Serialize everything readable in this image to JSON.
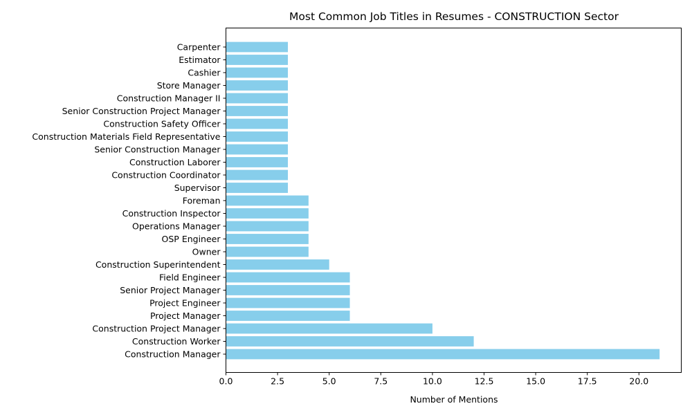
{
  "chart_data": {
    "type": "bar",
    "orientation": "horizontal",
    "title": "Most Common Job Titles in Resumes - CONSTRUCTION Sector",
    "xlabel": "Number of Mentions",
    "ylabel": "",
    "categories": [
      "Construction Manager",
      "Construction Worker",
      "Construction Project Manager",
      "Project Manager",
      "Project Engineer",
      "Senior Project Manager",
      "Field Engineer",
      "Construction Superintendent",
      "Owner",
      "OSP Engineer",
      "Operations Manager",
      "Construction Inspector",
      "Foreman",
      "Supervisor",
      "Construction Coordinator",
      "Construction Laborer",
      "Senior Construction Manager",
      "Construction Materials Field Representative",
      "Construction Safety Officer",
      "Senior Construction Project Manager",
      "Construction Manager II",
      "Store Manager",
      "Cashier",
      "Estimator",
      "Carpenter"
    ],
    "values": [
      21,
      12,
      10,
      6,
      6,
      6,
      6,
      5,
      4,
      4,
      4,
      4,
      4,
      3,
      3,
      3,
      3,
      3,
      3,
      3,
      3,
      3,
      3,
      3,
      3
    ],
    "xlim": [
      0,
      22.05
    ],
    "xticks": [
      "0.0",
      "2.5",
      "5.0",
      "7.5",
      "10.0",
      "12.5",
      "15.0",
      "17.5",
      "20.0"
    ],
    "bar_color": "#87CEEB",
    "grid": false,
    "legend": "none"
  }
}
